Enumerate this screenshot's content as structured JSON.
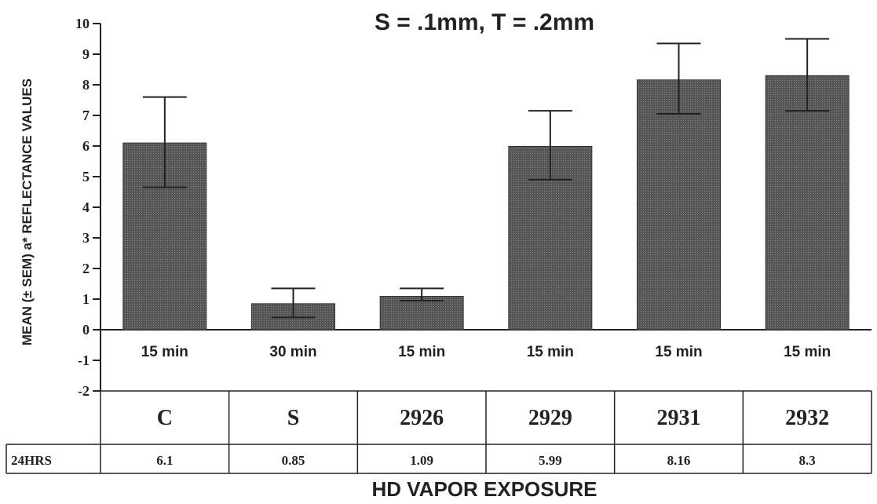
{
  "chart_data": {
    "type": "bar",
    "title": "S = .1mm, T = .2mm",
    "ylabel": "MEAN (± SEM) a* REFLECTANCE VALUES",
    "xlabel": "HD VAPOR EXPOSURE",
    "ylim": [
      -2,
      10
    ],
    "yticks": [
      "-2",
      "-1",
      "0",
      "1",
      "2",
      "3",
      "4",
      "5",
      "6",
      "7",
      "8",
      "9",
      "10"
    ],
    "categories": [
      "C",
      "S",
      "2926",
      "2929",
      "2931",
      "2932"
    ],
    "exposure_times": [
      "15 min",
      "30 min",
      "15 min",
      "15 min",
      "15 min",
      "15 min"
    ],
    "values": [
      6.1,
      0.85,
      1.09,
      5.99,
      8.16,
      8.3
    ],
    "error_upper": [
      7.6,
      1.35,
      1.35,
      7.15,
      9.35,
      9.5
    ],
    "error_lower": [
      4.65,
      0.4,
      0.95,
      4.9,
      7.05,
      7.15
    ],
    "table": {
      "row_label": "24HRS",
      "row_values": [
        "6.1",
        "0.85",
        "1.09",
        "5.99",
        "8.16",
        "8.3"
      ]
    },
    "bar_color": "#555555",
    "grid": false
  }
}
